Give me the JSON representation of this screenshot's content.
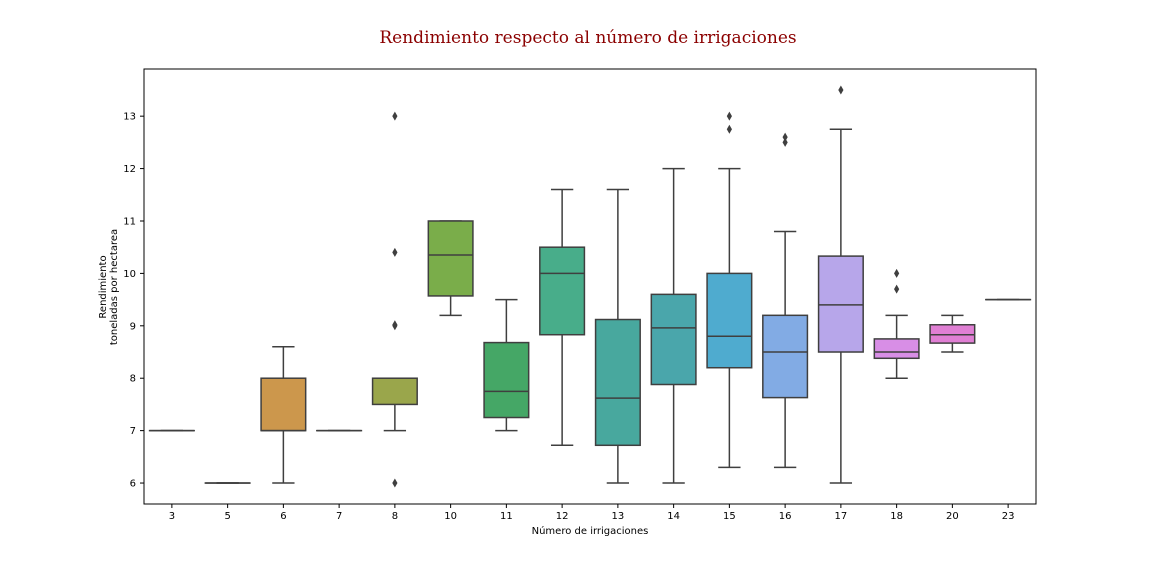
{
  "chart_data": {
    "type": "box",
    "title": "Rendimiento respecto al número de irrigaciones",
    "xlabel": "Número de irrigaciones",
    "ylabel_lines": [
      "Rendimiento",
      "toneladas por hectarea"
    ],
    "ylim": [
      5.6,
      13.9
    ],
    "yticks": [
      6,
      7,
      8,
      9,
      10,
      11,
      12,
      13
    ],
    "categories": [
      "3",
      "5",
      "6",
      "7",
      "8",
      "10",
      "11",
      "12",
      "13",
      "14",
      "15",
      "16",
      "17",
      "18",
      "20",
      "23"
    ],
    "boxes": [
      {
        "category": "3",
        "min": 7.0,
        "q1": 7.0,
        "median": 7.0,
        "q3": 7.0,
        "max": 7.0,
        "outliers": [],
        "color": "#c8504c"
      },
      {
        "category": "5",
        "min": 6.0,
        "q1": 6.0,
        "median": 6.0,
        "q3": 6.0,
        "max": 6.0,
        "outliers": [],
        "color": "#d4684a"
      },
      {
        "category": "6",
        "min": 6.0,
        "q1": 7.0,
        "median": 7.0,
        "q3": 8.0,
        "max": 8.6,
        "outliers": [],
        "color": "#cc974c"
      },
      {
        "category": "7",
        "min": 7.0,
        "q1": 7.0,
        "median": 7.0,
        "q3": 7.0,
        "max": 7.0,
        "outliers": [],
        "color": "#b0a445"
      },
      {
        "category": "8",
        "min": 7.0,
        "q1": 7.5,
        "median": 8.0,
        "q3": 8.0,
        "max": 8.0,
        "outliers": [
          6.0,
          9.0,
          9.02,
          10.4,
          13.0
        ],
        "color": "#9aa64b"
      },
      {
        "category": "10",
        "min": 9.2,
        "q1": 9.57,
        "median": 10.35,
        "q3": 11.0,
        "max": 11.0,
        "outliers": [],
        "color": "#7aad4a"
      },
      {
        "category": "11",
        "min": 7.0,
        "q1": 7.25,
        "median": 7.75,
        "q3": 8.68,
        "max": 9.5,
        "outliers": [],
        "color": "#45a766"
      },
      {
        "category": "12",
        "min": 6.72,
        "q1": 8.83,
        "median": 10.0,
        "q3": 10.5,
        "max": 11.6,
        "outliers": [],
        "color": "#48ad8a"
      },
      {
        "category": "13",
        "min": 6.0,
        "q1": 6.72,
        "median": 7.62,
        "q3": 9.12,
        "max": 11.6,
        "outliers": [],
        "color": "#48a89e"
      },
      {
        "category": "14",
        "min": 6.0,
        "q1": 7.88,
        "median": 8.96,
        "q3": 9.6,
        "max": 12.0,
        "outliers": [],
        "color": "#4aa6ab"
      },
      {
        "category": "15",
        "min": 6.3,
        "q1": 8.2,
        "median": 8.8,
        "q3": 10.0,
        "max": 12.0,
        "outliers": [
          12.75,
          13.0
        ],
        "color": "#4fabcf"
      },
      {
        "category": "16",
        "min": 6.3,
        "q1": 7.63,
        "median": 8.5,
        "q3": 9.2,
        "max": 10.8,
        "outliers": [
          12.5,
          12.6
        ],
        "color": "#82abe4"
      },
      {
        "category": "17",
        "min": 6.0,
        "q1": 8.5,
        "median": 9.4,
        "q3": 10.33,
        "max": 12.75,
        "outliers": [
          13.5
        ],
        "color": "#b7a6ea"
      },
      {
        "category": "18",
        "min": 8.0,
        "q1": 8.38,
        "median": 8.5,
        "q3": 8.75,
        "max": 9.2,
        "outliers": [
          9.7,
          10.0
        ],
        "color": "#d88ee6"
      },
      {
        "category": "20",
        "min": 8.5,
        "q1": 8.67,
        "median": 8.83,
        "q3": 9.02,
        "max": 9.2,
        "outliers": [],
        "color": "#e07fd4"
      },
      {
        "category": "23",
        "min": 9.5,
        "q1": 9.5,
        "median": 9.5,
        "q3": 9.5,
        "max": 9.5,
        "outliers": [],
        "color": "#e47cb4"
      }
    ]
  }
}
